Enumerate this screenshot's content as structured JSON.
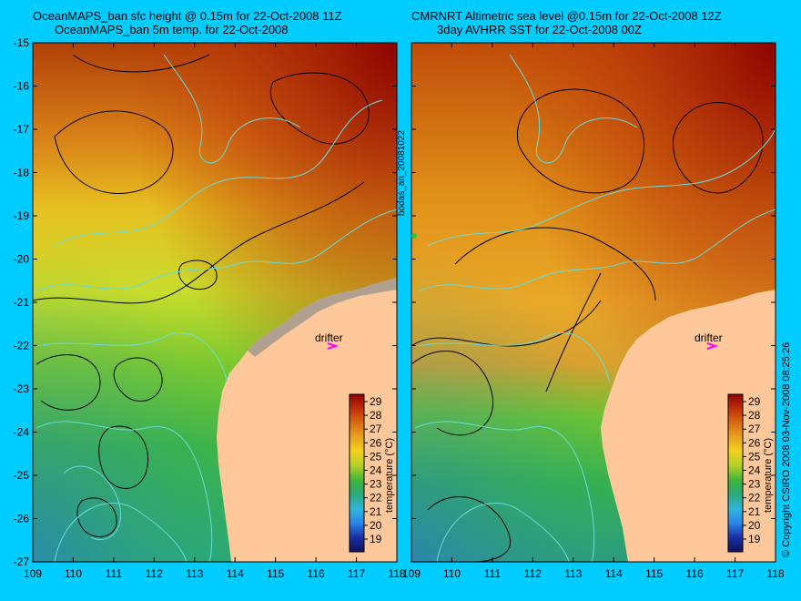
{
  "left_panel": {
    "title_line1": "OceanMAPS_ban sfc height @ 0.15m for 22-Oct-2008 11Z",
    "title_line2": "OceanMAPS_ban 5m temp. for 22-Oct-2008",
    "drifter_label": "drifter",
    "colorbar_label": "temperature (°C)"
  },
  "right_panel": {
    "title_line1": "CMRNRT Altimetric sea level  @0.15m  for 22-Oct-2008 12Z",
    "title_line2": "3day AVHRR SST for 22-Oct-2008 00Z",
    "drifter_label": "drifter",
    "colorbar_label": "temperature (°C)"
  },
  "middle_vertical_label": "bodas_an_20081022",
  "copyright_label": "© Copyright CSIRO 2008   03-Nov-2008 08:25:26",
  "axes": {
    "x_ticks": [
      "109",
      "110",
      "111",
      "112",
      "113",
      "114",
      "115",
      "116",
      "117",
      "118"
    ],
    "y_ticks": [
      "-15",
      "-16",
      "-17",
      "-18",
      "-19",
      "-20",
      "-21",
      "-22",
      "-23",
      "-24",
      "-25",
      "-26",
      "-27"
    ]
  },
  "colorbar": {
    "ticks": [
      "29",
      "28",
      "27",
      "26",
      "25",
      "24",
      "23",
      "22",
      "21",
      "20",
      "19"
    ],
    "colors": [
      "#8b0000",
      "#c0300a",
      "#d86a10",
      "#e8a020",
      "#f2d020",
      "#b4d228",
      "#3cb43c",
      "#2caa82",
      "#30b4dc",
      "#2c82e6",
      "#1830a0",
      "#101060"
    ]
  },
  "colors": {
    "background": "#00ccff",
    "land": "#ffc89a",
    "coastline": "#66dddd",
    "drifter_marker": "#ff00ff"
  }
}
